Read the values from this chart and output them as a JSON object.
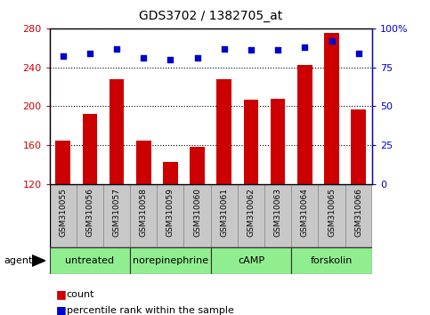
{
  "title": "GDS3702 / 1382705_at",
  "samples": [
    "GSM310055",
    "GSM310056",
    "GSM310057",
    "GSM310058",
    "GSM310059",
    "GSM310060",
    "GSM310061",
    "GSM310062",
    "GSM310063",
    "GSM310064",
    "GSM310065",
    "GSM310066"
  ],
  "counts": [
    165,
    192,
    228,
    165,
    143,
    158,
    228,
    207,
    208,
    242,
    275,
    197
  ],
  "percentile": [
    82,
    84,
    87,
    81,
    80,
    81,
    87,
    86,
    86,
    88,
    92,
    84
  ],
  "ylim_left": [
    120,
    280
  ],
  "ylim_right": [
    0,
    100
  ],
  "yticks_left": [
    120,
    160,
    200,
    240,
    280
  ],
  "yticks_right": [
    0,
    25,
    50,
    75,
    100
  ],
  "ytick_labels_right": [
    "0",
    "25",
    "50",
    "75",
    "100%"
  ],
  "agent_groups": [
    {
      "label": "untreated",
      "start": 0,
      "end": 3
    },
    {
      "label": "norepinephrine",
      "start": 3,
      "end": 6
    },
    {
      "label": "cAMP",
      "start": 6,
      "end": 9
    },
    {
      "label": "forskolin",
      "start": 9,
      "end": 12
    }
  ],
  "bar_color": "#cc0000",
  "dot_color": "#0000cc",
  "bar_width": 0.55,
  "bg_plot": "#ffffff",
  "bg_sample_row": "#c8c8c8",
  "agent_bg": "#90ee90",
  "agent_border": "#333333",
  "grid_color": "#000000",
  "left_axis_color": "#cc0000",
  "right_axis_color": "#0000cc",
  "legend_count_color": "#cc0000",
  "legend_pct_color": "#0000cc",
  "fig_width": 4.83,
  "fig_height": 3.54,
  "fig_dpi": 100
}
